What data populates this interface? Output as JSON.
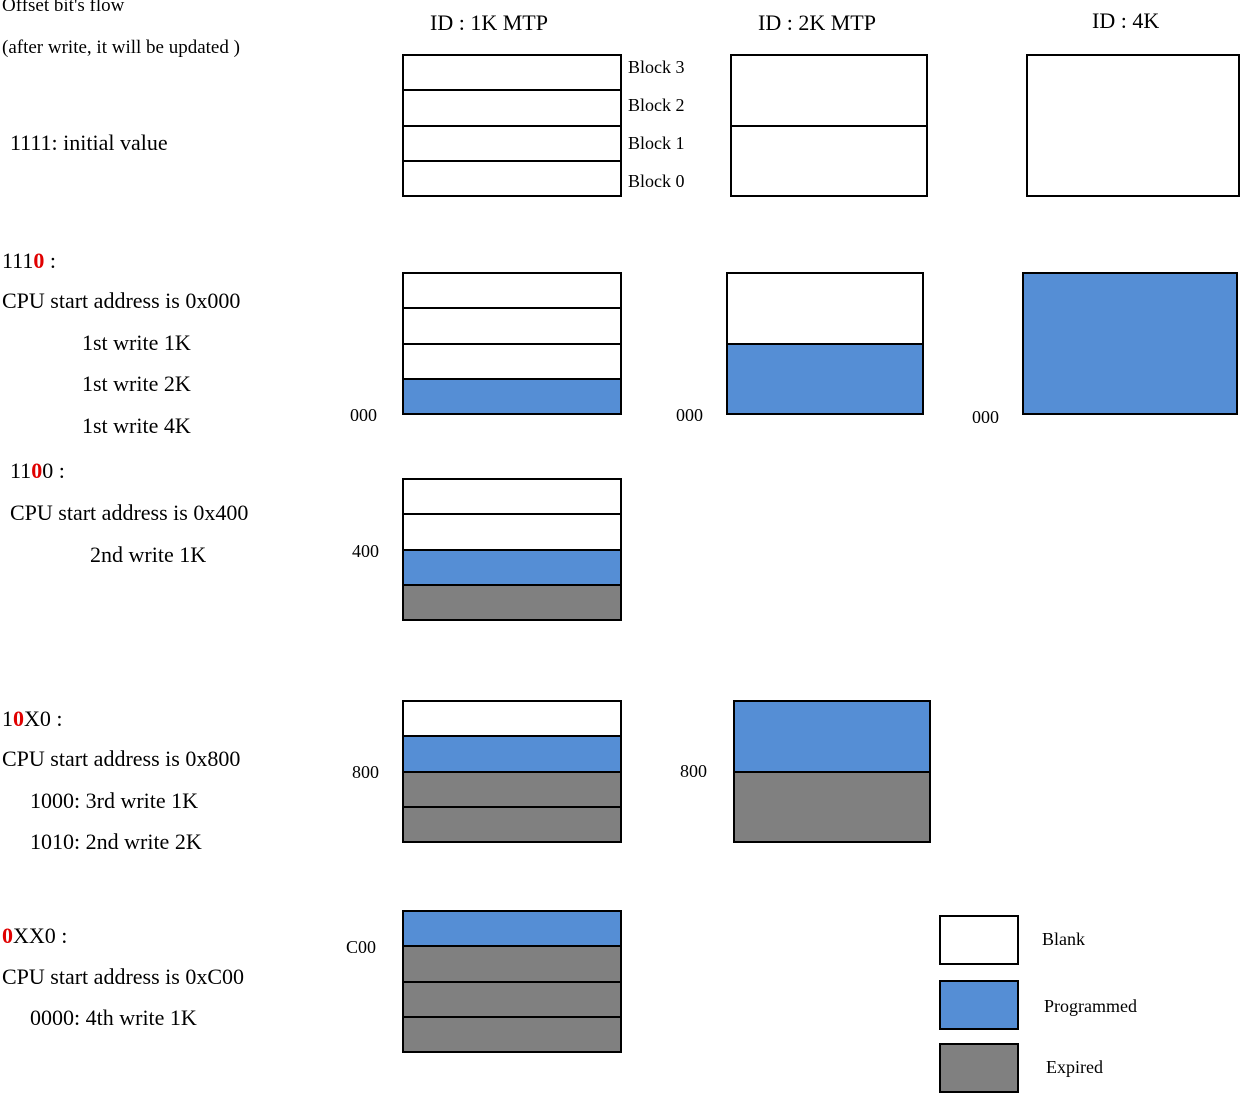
{
  "title": {
    "line1": "Offset bit's flow",
    "line2": "(after write, it will be updated )"
  },
  "columns": {
    "c1": "ID : 1K MTP",
    "c2": "ID : 2K MTP",
    "c3": "ID : 4K"
  },
  "block_labels": [
    "Block 3",
    "Block 2",
    "Block 1",
    "Block 0"
  ],
  "colors": {
    "blank": "#ffffff",
    "programmed": "#558ed5",
    "expired": "#808080"
  },
  "row0": {
    "desc": "1111: initial value"
  },
  "row1": {
    "code_a": "111",
    "code_b": "0",
    "code_c": " :",
    "l1": "CPU start address is 0x000",
    "l2": "1st write 1K",
    "l3": "1st write 2K",
    "l4": "1st write 4K",
    "addr": "000"
  },
  "row2": {
    "code_a": "11",
    "code_b": "0",
    "code_c": "0 :",
    "l1": "CPU start address is 0x400",
    "l2": "2nd write 1K",
    "addr": "400"
  },
  "row3": {
    "code_a": "1",
    "code_b": "0",
    "code_c": "X0 :",
    "l1": "CPU start address is 0x800",
    "l2": "1000: 3rd write 1K",
    "l3": "1010: 2nd write 2K",
    "addr": "800"
  },
  "row4": {
    "code_a": "",
    "code_b": "0",
    "code_c": "XX0 :",
    "l1": "CPU start address is 0xC00",
    "l2": "0000: 4th write 1K",
    "addr": "C00"
  },
  "legend": {
    "blank": "Blank",
    "programmed": "Programmed",
    "expired": "Expired"
  }
}
